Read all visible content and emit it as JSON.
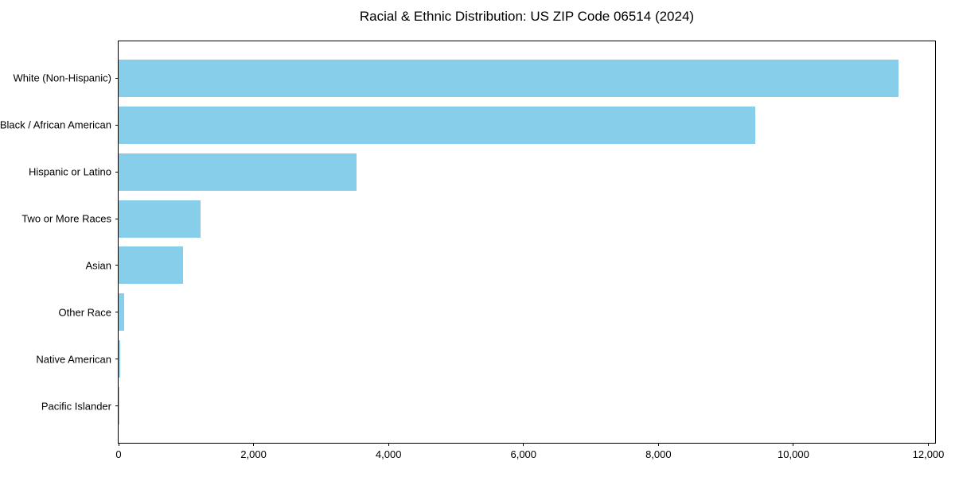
{
  "chart_data": {
    "type": "bar",
    "orientation": "horizontal",
    "title": "Racial & Ethnic Distribution: US ZIP Code 06514 (2024)",
    "categories": [
      "White (Non-Hispanic)",
      "Black / African American",
      "Hispanic or Latino",
      "Two or More Races",
      "Asian",
      "Other Race",
      "Native American",
      "Pacific Islander"
    ],
    "values": [
      11560,
      9440,
      3530,
      1220,
      960,
      80,
      20,
      5
    ],
    "xlabel": "",
    "ylabel": "",
    "xlim": [
      0,
      12100
    ],
    "xticks": [
      0,
      2000,
      4000,
      6000,
      8000,
      10000,
      12000
    ],
    "xtick_labels": [
      "0",
      "2,000",
      "4,000",
      "6,000",
      "8,000",
      "10,000",
      "12,000"
    ],
    "bar_color": "#87CEEB",
    "axis_color": "#000000",
    "background_color": "#ffffff",
    "grid": false,
    "legend": null
  }
}
